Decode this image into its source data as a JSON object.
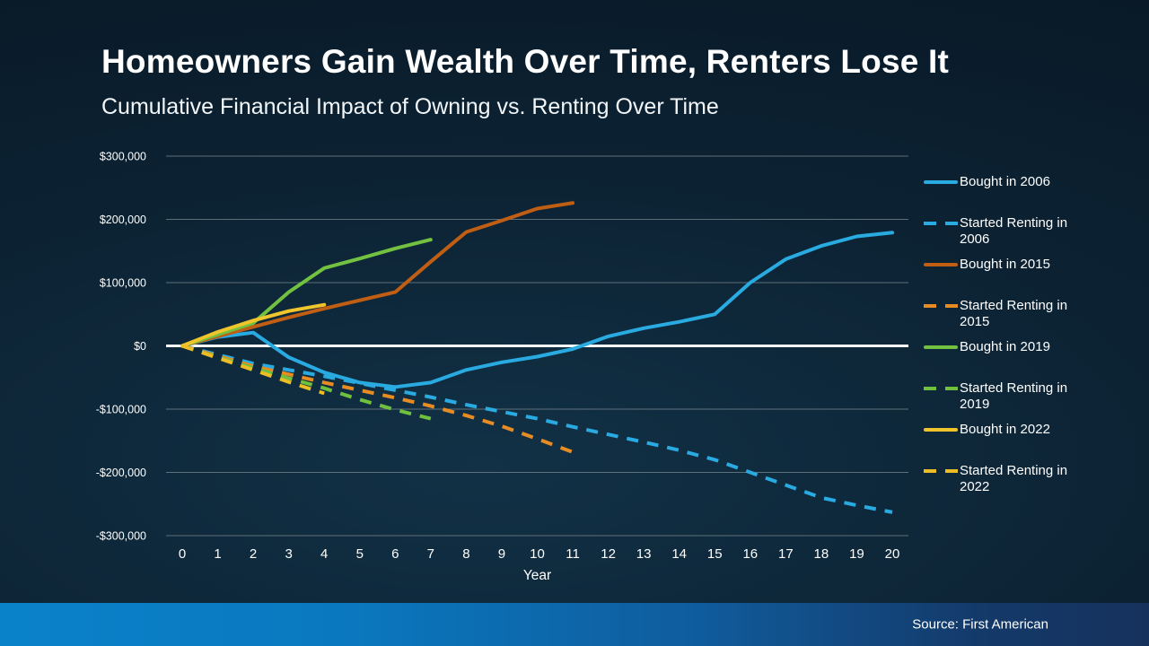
{
  "slide": {
    "title": "Homeowners Gain Wealth Over Time, Renters Lose It",
    "subtitle": "Cumulative Financial Impact of Owning vs. Renting Over Time",
    "source": "Source: First American"
  },
  "colors": {
    "background_dark": "#081623",
    "background_mid": "#0c2334",
    "gridline": "#7a878d",
    "zero_line": "#ffffff",
    "axis_text": "#ffffff",
    "bottom_bar_left": "#0a82ca",
    "bottom_bar_right": "#16315c"
  },
  "chart_data": {
    "type": "line",
    "title": "Cumulative Financial Impact of Owning vs. Renting Over Time",
    "xlabel": "Year",
    "ylabel": "",
    "xlim": [
      0,
      20
    ],
    "ylim": [
      -300000,
      300000
    ],
    "grid": "horizontal",
    "legend_position": "right",
    "yticks": [
      {
        "label": "$300,000",
        "value": 300000
      },
      {
        "label": "$200,000",
        "value": 200000
      },
      {
        "label": "$100,000",
        "value": 100000
      },
      {
        "label": "$0",
        "value": 0
      },
      {
        "label": "-$100,000",
        "value": -100000
      },
      {
        "label": "-$200,000",
        "value": -200000
      },
      {
        "label": "-$300,000",
        "value": -300000
      }
    ],
    "xticks": [
      0,
      1,
      2,
      3,
      4,
      5,
      6,
      7,
      8,
      9,
      10,
      11,
      12,
      13,
      14,
      15,
      16,
      17,
      18,
      19,
      20
    ],
    "series": [
      {
        "name": "Bought in 2006",
        "style": "solid",
        "color": "#29abe2",
        "x": [
          0,
          1,
          2,
          3,
          4,
          5,
          6,
          7,
          8,
          9,
          10,
          11,
          12,
          13,
          14,
          15,
          16,
          17,
          18,
          19,
          20
        ],
        "values": [
          0,
          14000,
          21000,
          -18000,
          -42000,
          -58000,
          -65000,
          -58000,
          -38000,
          -26000,
          -17000,
          -5000,
          15000,
          28000,
          38000,
          50000,
          100000,
          137000,
          158000,
          173000,
          179000
        ]
      },
      {
        "name": "Started Renting in 2006",
        "style": "dashed",
        "color": "#29abe2",
        "x": [
          0,
          1,
          2,
          3,
          4,
          5,
          6,
          7,
          8,
          9,
          10,
          11,
          12,
          13,
          14,
          15,
          16,
          17,
          18,
          19,
          20
        ],
        "values": [
          0,
          -14000,
          -28000,
          -38000,
          -48000,
          -59000,
          -70000,
          -81000,
          -93000,
          -104000,
          -115000,
          -128000,
          -140000,
          -152000,
          -165000,
          -180000,
          -200000,
          -220000,
          -240000,
          -252000,
          -263000
        ]
      },
      {
        "name": "Bought in 2015",
        "style": "solid",
        "color": "#c05e14",
        "x": [
          0,
          1,
          2,
          3,
          4,
          5,
          6,
          7,
          8,
          9,
          10,
          11
        ],
        "values": [
          0,
          15000,
          30000,
          45000,
          59000,
          72000,
          85000,
          133000,
          180000,
          198000,
          217000,
          226000
        ]
      },
      {
        "name": "Started Renting in 2015",
        "style": "dashed",
        "color": "#e78c23",
        "x": [
          0,
          1,
          2,
          3,
          4,
          5,
          6,
          7,
          8,
          9,
          10,
          11
        ],
        "values": [
          0,
          -16000,
          -32000,
          -45000,
          -58000,
          -70000,
          -82000,
          -95000,
          -110000,
          -127000,
          -147000,
          -168000
        ]
      },
      {
        "name": "Bought in 2019",
        "style": "solid",
        "color": "#72c141",
        "x": [
          0,
          1,
          2,
          3,
          4,
          5,
          6,
          7
        ],
        "values": [
          0,
          18000,
          36000,
          85000,
          123000,
          138000,
          154000,
          168000
        ]
      },
      {
        "name": "Started Renting in 2019",
        "style": "dashed",
        "color": "#6fc13d",
        "x": [
          0,
          1,
          2,
          3,
          4,
          5,
          6,
          7
        ],
        "values": [
          0,
          -18000,
          -35000,
          -51000,
          -67000,
          -85000,
          -101000,
          -115000
        ]
      },
      {
        "name": "Bought in 2022",
        "style": "solid",
        "color": "#f0c52c",
        "x": [
          0,
          1,
          2,
          3,
          4
        ],
        "values": [
          0,
          22000,
          40000,
          55000,
          65000
        ]
      },
      {
        "name": "Started Renting in 2022",
        "style": "dashed",
        "color": "#ecbd25",
        "x": [
          0,
          1,
          2,
          3,
          4
        ],
        "values": [
          0,
          -19000,
          -38000,
          -57000,
          -75000
        ]
      }
    ]
  }
}
